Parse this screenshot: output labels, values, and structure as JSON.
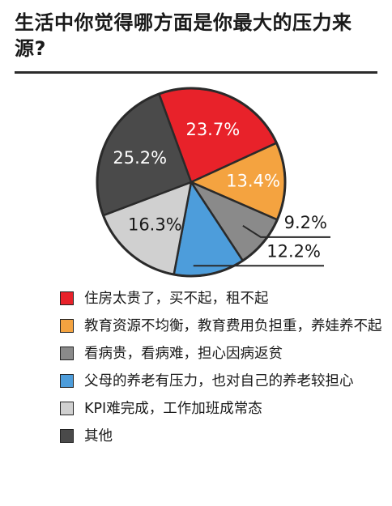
{
  "title": "生活中你觉得哪方面是你最大的压力来源?",
  "chart_data": {
    "type": "pie",
    "title": "生活中你觉得哪方面是你最大的压力来源?",
    "categories": [
      "住房太贵了，买不起，租不起",
      "教育资源不均衡，教育费用负担重，养娃养不起",
      "看病贵，看病难，担心因病返贫",
      "父母的养老有压力，也对自己的养老较担心",
      "KPI难完成，工作加班成常态",
      "其他"
    ],
    "values": [
      23.7,
      13.4,
      9.2,
      12.2,
      16.3,
      25.2
    ],
    "labels": [
      "23.7%",
      "13.4%",
      "9.2%",
      "12.2%",
      "16.3%",
      "25.2%"
    ],
    "colors": [
      "#e8222a",
      "#f4a340",
      "#8a8a8a",
      "#4d9ddb",
      "#d0d0d0",
      "#4a4a4a"
    ],
    "label_colors": [
      "#ffffff",
      "#ffffff",
      "#1a1a1a",
      "#1a1a1a",
      "#1a1a1a",
      "#ffffff"
    ],
    "legend_position": "bottom"
  }
}
